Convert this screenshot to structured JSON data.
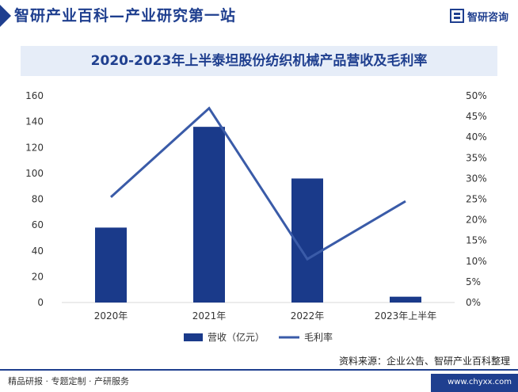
{
  "header": {
    "site_title": "智研产业百科—产业研究第一站",
    "logo_text": "智研咨询"
  },
  "chart_data": {
    "type": "bar",
    "title": "2020-2023年上半泰坦股份纺织机械产品营收及毛利率",
    "categories": [
      "2020年",
      "2021年",
      "2022年",
      "2023年上半年"
    ],
    "series": [
      {
        "name": "营收（亿元）",
        "type": "bar",
        "axis": "left",
        "values": [
          58,
          136,
          96,
          4.5
        ],
        "color": "#1a3a8a"
      },
      {
        "name": "毛利率",
        "type": "line",
        "axis": "right",
        "values": [
          25.5,
          47,
          10.5,
          24.5
        ],
        "color": "#3a5ba8"
      }
    ],
    "y_left": {
      "min": 0,
      "max": 160,
      "ticks": [
        "0",
        "20",
        "40",
        "60",
        "80",
        "100",
        "120",
        "140",
        "160"
      ]
    },
    "y_right": {
      "min": 0,
      "max": 50,
      "ticks": [
        "0%",
        "5%",
        "10%",
        "15%",
        "20%",
        "25%",
        "30%",
        "35%",
        "40%",
        "45%",
        "50%"
      ]
    },
    "legend_position": "bottom"
  },
  "footer": {
    "source": "资料来源：企业公告、智研产业百科整理",
    "left_text": "精品研报 · 专题定制 · 产研服务",
    "url": "www.chyxx.com"
  }
}
